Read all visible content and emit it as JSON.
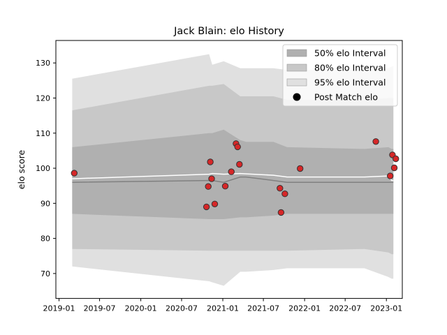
{
  "chart_data": {
    "type": "area",
    "title": "Jack Blain: elo History",
    "xlabel": "",
    "ylabel": "elo score",
    "xlim": [
      "2018-12-18",
      "2023-03-13"
    ],
    "ylim": [
      62.9,
      136.4
    ],
    "x_ticks": [
      "2019-01",
      "2019-07",
      "2020-01",
      "2020-07",
      "2021-01",
      "2021-07",
      "2022-01",
      "2022-07",
      "2023-01"
    ],
    "y_ticks": [
      70,
      80,
      90,
      100,
      110,
      120,
      130
    ],
    "grid": false,
    "legend_position": "top-right",
    "legend": [
      {
        "label": "50% elo Interval",
        "kind": "patch",
        "color": "#b0b0b0"
      },
      {
        "label": "80% elo Interval",
        "kind": "patch",
        "color": "#c8c8c8"
      },
      {
        "label": "95% elo Interval",
        "kind": "patch",
        "color": "#e0e0e0"
      },
      {
        "label": "Post Match elo",
        "kind": "marker",
        "color": "#000000"
      }
    ],
    "x": [
      "2019-03-01",
      "2020-11-01",
      "2020-11-15",
      "2021-01-05",
      "2021-03-20",
      "2021-04-15",
      "2021-08-15",
      "2021-10-15",
      "2022-09-25",
      "2023-01-10",
      "2023-01-25",
      "2023-02-01"
    ],
    "band_95": {
      "lower": [
        72,
        67.8,
        67.5,
        66.5,
        70.5,
        70.5,
        71,
        71.5,
        71.5,
        69,
        68.5,
        68.5
      ],
      "upper": [
        125.5,
        132.5,
        129.5,
        130.5,
        128.5,
        128.5,
        128.5,
        128,
        128,
        128.5,
        129,
        129
      ]
    },
    "band_80": {
      "lower": [
        77,
        76.5,
        76.5,
        76.5,
        76.5,
        76.5,
        76.5,
        76.5,
        77,
        76,
        75.5,
        75.5
      ],
      "upper": [
        116.5,
        123.5,
        123.5,
        124,
        120.5,
        120.5,
        120.5,
        119.5,
        119.5,
        120,
        120,
        120
      ]
    },
    "band_50": {
      "lower": [
        87,
        85.5,
        85.5,
        85.5,
        86,
        86,
        86.5,
        87,
        87,
        87,
        87,
        87
      ]
    },
    "band_50_upper": [
      106,
      110,
      110,
      111,
      108,
      107.5,
      107.5,
      106,
      105.5,
      106,
      105.5,
      105.5
    ],
    "median": [
      96,
      96.5,
      96.5,
      96,
      97.5,
      97.5,
      96.5,
      96,
      96,
      96,
      96,
      96
    ],
    "mean": [
      97,
      98.3,
      98.5,
      98.3,
      98.5,
      98.4,
      98,
      97.5,
      97.5,
      97.8,
      96.5,
      96.5
    ],
    "points": {
      "x": [
        "2019-03-10",
        "2020-10-20",
        "2020-10-28",
        "2020-11-06",
        "2020-11-12",
        "2020-11-26",
        "2021-01-12",
        "2021-02-08",
        "2021-03-01",
        "2021-03-08",
        "2021-03-16",
        "2021-09-13",
        "2021-09-18",
        "2021-10-05",
        "2021-12-12",
        "2022-11-15",
        "2023-01-18",
        "2023-01-28",
        "2023-02-05",
        "2023-02-12"
      ],
      "y": [
        98.6,
        89,
        94.8,
        101.8,
        97,
        89.8,
        94.9,
        99,
        107,
        106.1,
        101.1,
        94.3,
        87.4,
        92.7,
        99.9,
        107.6,
        97.8,
        103.8,
        100.1,
        102.7
      ]
    },
    "colors": {
      "band_95": "#e0e0e0",
      "band_80": "#c8c8c8",
      "band_50": "#b0b0b0",
      "median": "#808080",
      "mean": "#ffffff",
      "marker_fill": "#d62728",
      "marker_edge": "#333333"
    }
  }
}
